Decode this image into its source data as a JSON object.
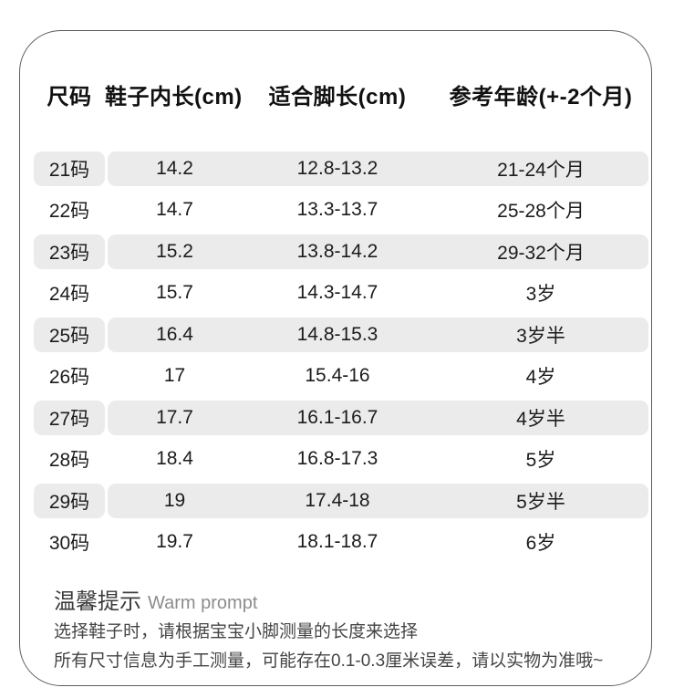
{
  "table": {
    "headers": {
      "size": "尺码",
      "inner_length": "鞋子内长(cm)",
      "foot_length": "适合脚长(cm)",
      "age": "参考年龄(+-2个月)"
    },
    "rows": [
      {
        "size": "21码",
        "inner": "14.2",
        "foot": "12.8-13.2",
        "age": "21-24个月"
      },
      {
        "size": "22码",
        "inner": "14.7",
        "foot": "13.3-13.7",
        "age": "25-28个月"
      },
      {
        "size": "23码",
        "inner": "15.2",
        "foot": "13.8-14.2",
        "age": "29-32个月"
      },
      {
        "size": "24码",
        "inner": "15.7",
        "foot": "14.3-14.7",
        "age": "3岁"
      },
      {
        "size": "25码",
        "inner": "16.4",
        "foot": "14.8-15.3",
        "age": "3岁半"
      },
      {
        "size": "26码",
        "inner": "17",
        "foot": "15.4-16",
        "age": "4岁"
      },
      {
        "size": "27码",
        "inner": "17.7",
        "foot": "16.1-16.7",
        "age": "4岁半"
      },
      {
        "size": "28码",
        "inner": "18.4",
        "foot": "16.8-17.3",
        "age": "5岁"
      },
      {
        "size": "29码",
        "inner": "19",
        "foot": "17.4-18",
        "age": "5岁半"
      },
      {
        "size": "30码",
        "inner": "19.7",
        "foot": "18.1-18.7",
        "age": "6岁"
      }
    ],
    "shaded_row_color": "#ebebeb",
    "border_color": "#5c5c5c"
  },
  "notes": {
    "title_cn": "温馨提示",
    "title_en": "Warm prompt",
    "line1": "选择鞋子时，请根据宝宝小脚测量的长度来选择",
    "line2": "所有尺寸信息为手工测量，可能存在0.1-0.3厘米误差，请以实物为准哦~"
  }
}
